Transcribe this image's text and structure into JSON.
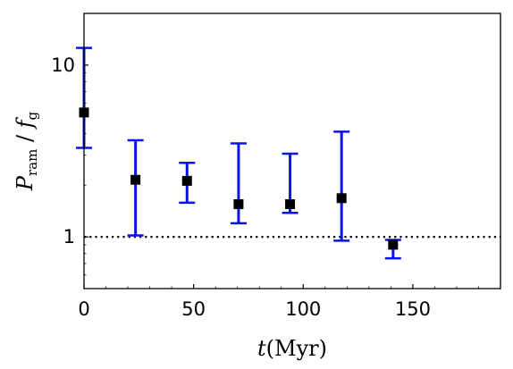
{
  "chart_data": {
    "type": "scatter",
    "x": [
      0,
      23.5,
      47,
      70.5,
      94,
      117.5,
      141
    ],
    "y": [
      5.3,
      2.15,
      2.12,
      1.55,
      1.55,
      1.68,
      0.9
    ],
    "err_low": [
      3.3,
      1.02,
      1.58,
      1.2,
      1.38,
      0.95,
      0.75
    ],
    "err_high": [
      12.6,
      3.65,
      2.7,
      3.5,
      3.05,
      4.1,
      0.96
    ],
    "xlabel": "t(Myr)",
    "ylabel": "P_ram / f_g",
    "xlim": [
      0,
      190
    ],
    "ylim": [
      0.5,
      20
    ],
    "yscale": "log",
    "xticks": [
      "0",
      "50",
      "100",
      "150"
    ],
    "yticks": [
      "1",
      "10"
    ],
    "reference_line": {
      "y": 1,
      "style": "dotted"
    },
    "grid": false,
    "legend": "none",
    "colors": {
      "marker": "#000000",
      "errorbar": "#0a14e6",
      "axes": "#000000"
    }
  }
}
